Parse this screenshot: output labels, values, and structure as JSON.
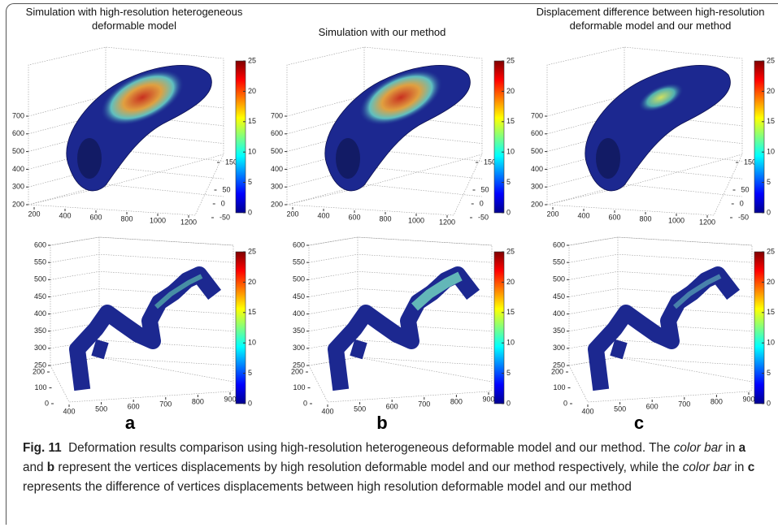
{
  "figure": {
    "panels": [
      {
        "title": "Simulation with high-resolution heterogeneous deformable model",
        "letter": "a"
      },
      {
        "title": "Simulation with our method",
        "letter": "b"
      },
      {
        "title": "Displacement difference between high-resolution deformable model and our method",
        "letter": "c"
      }
    ],
    "top_axes": {
      "zticks": [
        200,
        300,
        400,
        500,
        600,
        700
      ],
      "xticks": [
        200,
        400,
        600,
        800,
        1000,
        1200
      ],
      "yticks": [
        -50,
        0,
        50,
        150
      ]
    },
    "bottom_axes": {
      "zticks": [
        250,
        300,
        350,
        400,
        450,
        500,
        550,
        600
      ],
      "xticks": [
        400,
        500,
        600,
        700,
        800,
        900
      ],
      "yticks": [
        0,
        100,
        200
      ]
    },
    "colorbar": {
      "ticks": [
        0,
        5,
        10,
        15,
        20,
        25
      ]
    },
    "caption": {
      "label": "Fig. 11",
      "parts": [
        "Deformation results comparison using high-resolution heterogeneous deformable model and our method. The ",
        "color bar",
        " in ",
        "a",
        " and ",
        "b",
        " represent the vertices displacements by high resolution deformable model and our method respectively, while the ",
        "color bar",
        " in ",
        "c",
        " represents the difference of vertices displacements between high resolution deformable model and our method"
      ]
    }
  }
}
